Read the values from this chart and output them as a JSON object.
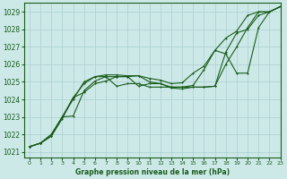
{
  "title": "Graphe pression niveau de la mer (hPa)",
  "bg_color": "#cce9e8",
  "line_color": "#1a5c1a",
  "grid_color": "#aacfce",
  "xlim": [
    -0.5,
    23
  ],
  "ylim": [
    1020.7,
    1029.5
  ],
  "xticks": [
    0,
    1,
    2,
    3,
    4,
    5,
    6,
    7,
    8,
    9,
    10,
    11,
    12,
    13,
    14,
    15,
    16,
    17,
    18,
    19,
    20,
    21,
    22,
    23
  ],
  "yticks": [
    1021,
    1022,
    1023,
    1024,
    1025,
    1026,
    1027,
    1028,
    1029
  ],
  "s1_x": [
    0,
    1,
    2,
    3,
    4,
    5,
    6,
    7,
    8,
    9,
    10,
    11,
    12,
    13,
    14,
    15,
    16,
    17,
    18,
    19,
    20,
    21,
    22,
    23
  ],
  "s1_y": [
    1021.3,
    1021.5,
    1021.9,
    1022.9,
    1024.1,
    1024.4,
    1024.9,
    1025.05,
    1025.3,
    1025.3,
    1024.75,
    1024.9,
    1024.9,
    1024.65,
    1024.6,
    1024.7,
    1024.7,
    1024.75,
    1026.0,
    1027.0,
    1028.1,
    1029.0,
    1029.0,
    1029.3
  ],
  "s2_x": [
    0,
    1,
    2,
    3,
    4,
    5,
    6,
    7,
    8,
    9,
    10,
    11,
    12,
    13,
    14,
    15,
    16,
    17,
    18,
    19,
    20,
    21,
    22,
    23
  ],
  "s2_y": [
    1021.3,
    1021.5,
    1021.9,
    1023.0,
    1023.05,
    1024.5,
    1025.05,
    1025.3,
    1025.3,
    1025.3,
    1025.35,
    1025.0,
    1024.9,
    1024.7,
    1024.7,
    1024.7,
    1024.7,
    1024.75,
    1026.7,
    1027.8,
    1028.0,
    1028.8,
    1029.0,
    1029.3
  ],
  "s3_x": [
    0,
    1,
    2,
    3,
    4,
    5,
    6,
    7,
    8,
    9,
    10,
    11,
    12,
    13,
    14,
    15,
    16,
    17,
    18,
    19,
    20,
    21,
    22,
    23
  ],
  "s3_y": [
    1021.3,
    1021.5,
    1022.0,
    1023.0,
    1024.0,
    1025.0,
    1025.3,
    1025.3,
    1024.75,
    1024.9,
    1024.9,
    1024.7,
    1024.7,
    1024.7,
    1024.7,
    1024.8,
    1025.7,
    1026.8,
    1027.5,
    1027.9,
    1028.8,
    1029.0,
    1029.0,
    1029.3
  ],
  "s4_x": [
    0,
    1,
    2,
    3,
    4,
    5,
    6,
    7,
    8,
    9,
    10,
    11,
    12,
    13,
    14,
    15,
    16,
    17,
    18,
    19,
    20,
    21,
    22,
    23
  ],
  "s4_y": [
    1021.3,
    1021.5,
    1022.0,
    1023.0,
    1024.1,
    1024.9,
    1025.3,
    1025.4,
    1025.4,
    1025.35,
    1025.35,
    1025.2,
    1025.1,
    1024.9,
    1024.95,
    1025.5,
    1025.9,
    1026.8,
    1026.6,
    1025.5,
    1025.5,
    1028.1,
    1029.0,
    1029.3
  ]
}
